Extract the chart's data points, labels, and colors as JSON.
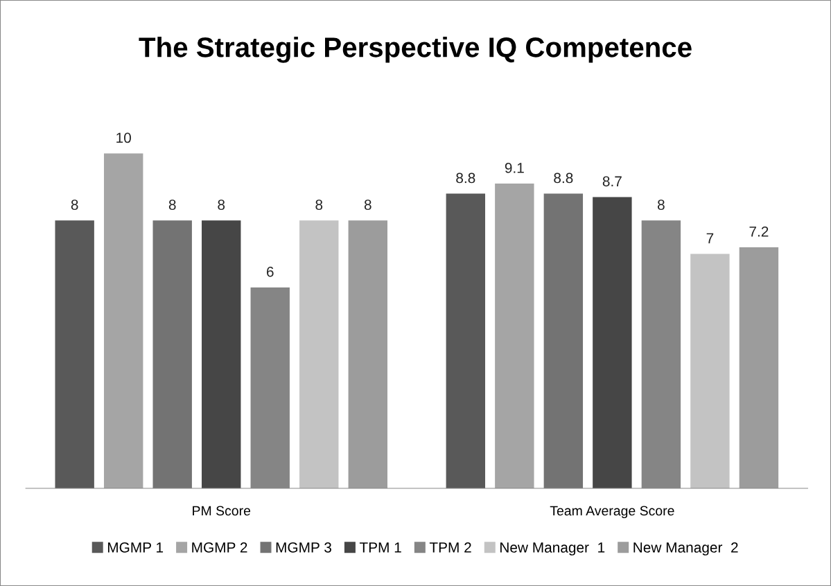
{
  "chart_data": {
    "type": "bar",
    "title": "The Strategic Perspective IQ Competence",
    "categories": [
      "PM Score",
      "Team Average Score"
    ],
    "series": [
      {
        "name": "MGMP 1",
        "color": "#595959",
        "values": [
          8,
          8.8
        ]
      },
      {
        "name": "MGMP 2",
        "color": "#a5a5a5",
        "values": [
          10,
          9.1
        ]
      },
      {
        "name": "MGMP 3",
        "color": "#737373",
        "values": [
          8,
          8.8
        ]
      },
      {
        "name": "TPM 1",
        "color": "#464646",
        "values": [
          8,
          8.7
        ]
      },
      {
        "name": "TPM 2",
        "color": "#858585",
        "values": [
          6,
          8
        ]
      },
      {
        "name": "New Manager  1",
        "color": "#c3c3c3",
        "values": [
          8,
          7
        ]
      },
      {
        "name": "New Manager  2",
        "color": "#9c9c9c",
        "values": [
          8,
          7.2
        ]
      }
    ],
    "data_labels": true,
    "legend": "bottom",
    "grid": false,
    "tick_labels": "x"
  }
}
